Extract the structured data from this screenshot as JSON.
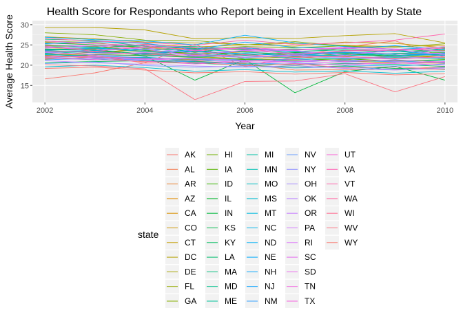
{
  "chart_data": {
    "type": "line",
    "title": "Health Score for Respondants who Report being in Excellent Health by State",
    "xlabel": "Year",
    "ylabel": "Average Health Score",
    "x": [
      2002,
      2003,
      2004,
      2005,
      2006,
      2007,
      2008,
      2009,
      2010
    ],
    "xticks": [
      2002,
      2004,
      2006,
      2008,
      2010
    ],
    "yticks": [
      15,
      20,
      25,
      30
    ],
    "xlim": [
      2001.75,
      2010.25
    ],
    "ylim": [
      10.8,
      31.0
    ],
    "grid": true,
    "background": "#ebebeb",
    "legend": {
      "title": "state",
      "position": "bottom",
      "ncol": 5
    },
    "series": [
      {
        "name": "AK",
        "color": "#F8766D",
        "values": [
          16.6,
          18.1,
          20.6,
          25.2,
          19.6,
          22.1,
          24.5,
          26.0,
          22.0
        ]
      },
      {
        "name": "AL",
        "color": "#F27D52",
        "values": [
          23.0,
          21.8,
          20.8,
          21.0,
          20.3,
          18.8,
          18.9,
          19.0,
          19.6
        ]
      },
      {
        "name": "AR",
        "color": "#EA8331",
        "values": [
          25.7,
          25.0,
          24.3,
          24.1,
          21.6,
          22.1,
          21.3,
          22.4,
          21.8
        ]
      },
      {
        "name": "AZ",
        "color": "#E18A00",
        "values": [
          22.5,
          23.2,
          23.8,
          22.6,
          23.3,
          22.4,
          22.1,
          21.8,
          22.5
        ]
      },
      {
        "name": "CA",
        "color": "#D89000",
        "values": [
          21.5,
          22.0,
          21.9,
          21.3,
          21.4,
          21.5,
          21.0,
          20.6,
          20.5
        ]
      },
      {
        "name": "CO",
        "color": "#CD9600",
        "values": [
          24.3,
          24.0,
          25.2,
          24.5,
          25.0,
          25.4,
          24.9,
          24.6,
          24.9
        ]
      },
      {
        "name": "CT",
        "color": "#C19C00",
        "values": [
          27.0,
          26.5,
          25.7,
          25.5,
          25.1,
          24.7,
          25.7,
          25.4,
          24.3
        ]
      },
      {
        "name": "DC",
        "color": "#B4A100",
        "values": [
          29.2,
          29.3,
          28.7,
          26.5,
          26.8,
          26.6,
          27.3,
          27.8,
          25.5
        ]
      },
      {
        "name": "DE",
        "color": "#A5A400",
        "values": [
          22.4,
          22.8,
          23.0,
          22.1,
          21.6,
          22.1,
          22.7,
          22.3,
          22.0
        ]
      },
      {
        "name": "FL",
        "color": "#94AA00",
        "values": [
          23.9,
          24.1,
          23.3,
          23.0,
          22.7,
          22.9,
          23.2,
          22.8,
          22.4
        ]
      },
      {
        "name": "GA",
        "color": "#85AD00",
        "values": [
          28.0,
          27.5,
          26.2,
          26.1,
          25.0,
          25.8,
          24.7,
          24.4,
          25.3
        ]
      },
      {
        "name": "HI",
        "color": "#70B000",
        "values": [
          25.9,
          25.6,
          24.1,
          23.8,
          24.6,
          24.3,
          24.8,
          23.9,
          23.6
        ]
      },
      {
        "name": "IA",
        "color": "#58B400",
        "values": [
          24.8,
          24.6,
          23.6,
          22.9,
          23.5,
          23.0,
          22.5,
          22.9,
          23.1
        ]
      },
      {
        "name": "ID",
        "color": "#39B600",
        "values": [
          22.1,
          22.6,
          22.4,
          21.9,
          21.4,
          21.2,
          21.6,
          21.0,
          21.4
        ]
      },
      {
        "name": "IL",
        "color": "#00B52A",
        "values": [
          24.0,
          23.7,
          22.8,
          23.4,
          22.5,
          23.1,
          22.9,
          22.2,
          22.7
        ]
      },
      {
        "name": "IN",
        "color": "#00B83B",
        "values": [
          23.7,
          23.9,
          22.3,
          16.3,
          21.4,
          13.2,
          18.4,
          19.7,
          16.3
        ]
      },
      {
        "name": "KS",
        "color": "#00BA4C",
        "values": [
          25.5,
          25.0,
          24.5,
          24.2,
          23.8,
          24.0,
          23.7,
          23.3,
          23.9
        ]
      },
      {
        "name": "KY",
        "color": "#00BC5C",
        "values": [
          20.6,
          20.9,
          21.1,
          20.5,
          20.0,
          19.5,
          19.8,
          19.2,
          19.0
        ]
      },
      {
        "name": "LA",
        "color": "#00BD6C",
        "values": [
          22.8,
          22.0,
          21.6,
          20.9,
          20.5,
          20.0,
          20.4,
          20.2,
          19.7
        ]
      },
      {
        "name": "MA",
        "color": "#00BF7D",
        "values": [
          26.4,
          26.1,
          24.7,
          24.6,
          23.9,
          23.4,
          23.8,
          23.6,
          23.2
        ]
      },
      {
        "name": "MD",
        "color": "#00C08B",
        "values": [
          25.1,
          24.4,
          24.9,
          23.2,
          24.5,
          22.8,
          23.4,
          22.6,
          24.1
        ]
      },
      {
        "name": "ME",
        "color": "#00C19A",
        "values": [
          22.9,
          23.4,
          22.6,
          22.8,
          21.9,
          22.6,
          22.3,
          22.9,
          22.6
        ]
      },
      {
        "name": "MI",
        "color": "#00C1A7",
        "values": [
          23.2,
          23.5,
          22.6,
          22.0,
          22.4,
          21.8,
          21.5,
          21.9,
          21.6
        ]
      },
      {
        "name": "MN",
        "color": "#00C0B4",
        "values": [
          24.6,
          24.3,
          23.7,
          24.0,
          23.2,
          22.7,
          23.1,
          22.4,
          22.8
        ]
      },
      {
        "name": "MO",
        "color": "#00BFC4",
        "values": [
          21.8,
          21.3,
          22.0,
          21.1,
          21.6,
          20.9,
          21.2,
          20.8,
          21.2
        ]
      },
      {
        "name": "MS",
        "color": "#00BDD0",
        "values": [
          19.6,
          20.0,
          19.4,
          18.5,
          18.9,
          18.3,
          18.6,
          18.0,
          18.5
        ]
      },
      {
        "name": "MT",
        "color": "#00BADE",
        "values": [
          23.4,
          23.6,
          24.0,
          22.3,
          22.9,
          22.2,
          22.6,
          22.1,
          22.9
        ]
      },
      {
        "name": "NC",
        "color": "#00B5EA",
        "values": [
          22.6,
          22.3,
          21.8,
          21.5,
          21.0,
          21.6,
          20.8,
          21.3,
          20.7
        ]
      },
      {
        "name": "ND",
        "color": "#00B0F6",
        "values": [
          26.9,
          26.3,
          26.0,
          25.0,
          27.4,
          25.5,
          24.6,
          23.9,
          24.5
        ]
      },
      {
        "name": "NE",
        "color": "#00ABFD",
        "values": [
          23.8,
          24.2,
          23.4,
          23.6,
          24.2,
          23.3,
          23.0,
          23.4,
          22.7
        ]
      },
      {
        "name": "NH",
        "color": "#00A5FF",
        "values": [
          25.3,
          25.8,
          25.4,
          23.9,
          25.7,
          24.4,
          24.1,
          24.8,
          23.8
        ]
      },
      {
        "name": "NJ",
        "color": "#00A0FF",
        "values": [
          23.6,
          23.1,
          22.9,
          23.5,
          22.8,
          22.4,
          23.1,
          22.8,
          22.4
        ]
      },
      {
        "name": "NM",
        "color": "#35A2FF",
        "values": [
          21.3,
          21.7,
          21.2,
          20.8,
          20.2,
          20.6,
          20.0,
          19.8,
          20.3
        ]
      },
      {
        "name": "NV",
        "color": "#6B9DFF",
        "values": [
          20.4,
          20.8,
          19.9,
          19.5,
          19.8,
          19.3,
          19.6,
          18.9,
          19.4
        ]
      },
      {
        "name": "NY",
        "color": "#8F91FF",
        "values": [
          23.3,
          22.5,
          22.2,
          22.4,
          21.9,
          22.3,
          21.7,
          22.1,
          21.8
        ]
      },
      {
        "name": "OH",
        "color": "#A58AFF",
        "values": [
          22.0,
          21.6,
          21.4,
          21.8,
          21.2,
          20.8,
          21.3,
          20.9,
          20.6
        ]
      },
      {
        "name": "OK",
        "color": "#BA83FF",
        "values": [
          21.1,
          20.6,
          20.2,
          19.8,
          19.5,
          19.9,
          19.2,
          18.8,
          19.3
        ]
      },
      {
        "name": "OR",
        "color": "#C77CFF",
        "values": [
          24.5,
          23.8,
          24.3,
          22.9,
          23.6,
          22.9,
          23.4,
          22.7,
          23.0
        ]
      },
      {
        "name": "PA",
        "color": "#D376FF",
        "values": [
          23.1,
          22.7,
          23.1,
          22.5,
          22.0,
          22.5,
          21.9,
          21.5,
          22.1
        ]
      },
      {
        "name": "RI",
        "color": "#DD71FA",
        "values": [
          24.2,
          24.8,
          23.9,
          22.4,
          23.7,
          23.6,
          22.4,
          23.9,
          22.6
        ]
      },
      {
        "name": "SC",
        "color": "#E56BEF",
        "values": [
          22.3,
          21.9,
          21.5,
          21.2,
          20.7,
          21.0,
          20.5,
          20.4,
          20.9
        ]
      },
      {
        "name": "SD",
        "color": "#EC69EE",
        "values": [
          25.0,
          24.7,
          25.1,
          24.3,
          24.0,
          23.8,
          24.4,
          24.0,
          23.5
        ]
      },
      {
        "name": "TN",
        "color": "#F166E0",
        "values": [
          21.7,
          21.4,
          21.0,
          20.3,
          20.9,
          20.4,
          20.1,
          20.6,
          20.0
        ]
      },
      {
        "name": "TX",
        "color": "#F763E0",
        "values": [
          22.2,
          22.1,
          21.7,
          21.6,
          21.1,
          21.4,
          20.9,
          21.2,
          20.8
        ]
      },
      {
        "name": "UT",
        "color": "#FB61D7",
        "values": [
          26.0,
          25.3,
          24.9,
          23.5,
          24.4,
          23.7,
          24.2,
          23.6,
          24.6
        ]
      },
      {
        "name": "VA",
        "color": "#FF63B6",
        "values": [
          24.7,
          23.4,
          24.6,
          23.7,
          24.1,
          22.6,
          23.6,
          23.7,
          24.2
        ]
      },
      {
        "name": "VT",
        "color": "#FF65AC",
        "values": [
          26.6,
          25.9,
          25.6,
          24.9,
          26.2,
          25.1,
          25.5,
          26.2,
          27.7
        ]
      },
      {
        "name": "WA",
        "color": "#FF67A4",
        "values": [
          23.5,
          23.3,
          22.7,
          22.2,
          22.6,
          21.9,
          22.2,
          21.6,
          22.1
        ]
      },
      {
        "name": "WI",
        "color": "#FF6C91",
        "values": [
          21.9,
          22.4,
          20.5,
          20.7,
          19.9,
          20.3,
          19.4,
          19.6,
          18.9
        ]
      },
      {
        "name": "WV",
        "color": "#FC717F",
        "values": [
          20.1,
          19.8,
          19.1,
          11.5,
          16.0,
          16.1,
          17.9,
          13.4,
          17.2
        ]
      },
      {
        "name": "WY",
        "color": "#F8766D",
        "values": [
          19.2,
          19.5,
          18.8,
          18.1,
          18.4,
          17.8,
          18.2,
          17.6,
          17.9
        ]
      }
    ]
  }
}
